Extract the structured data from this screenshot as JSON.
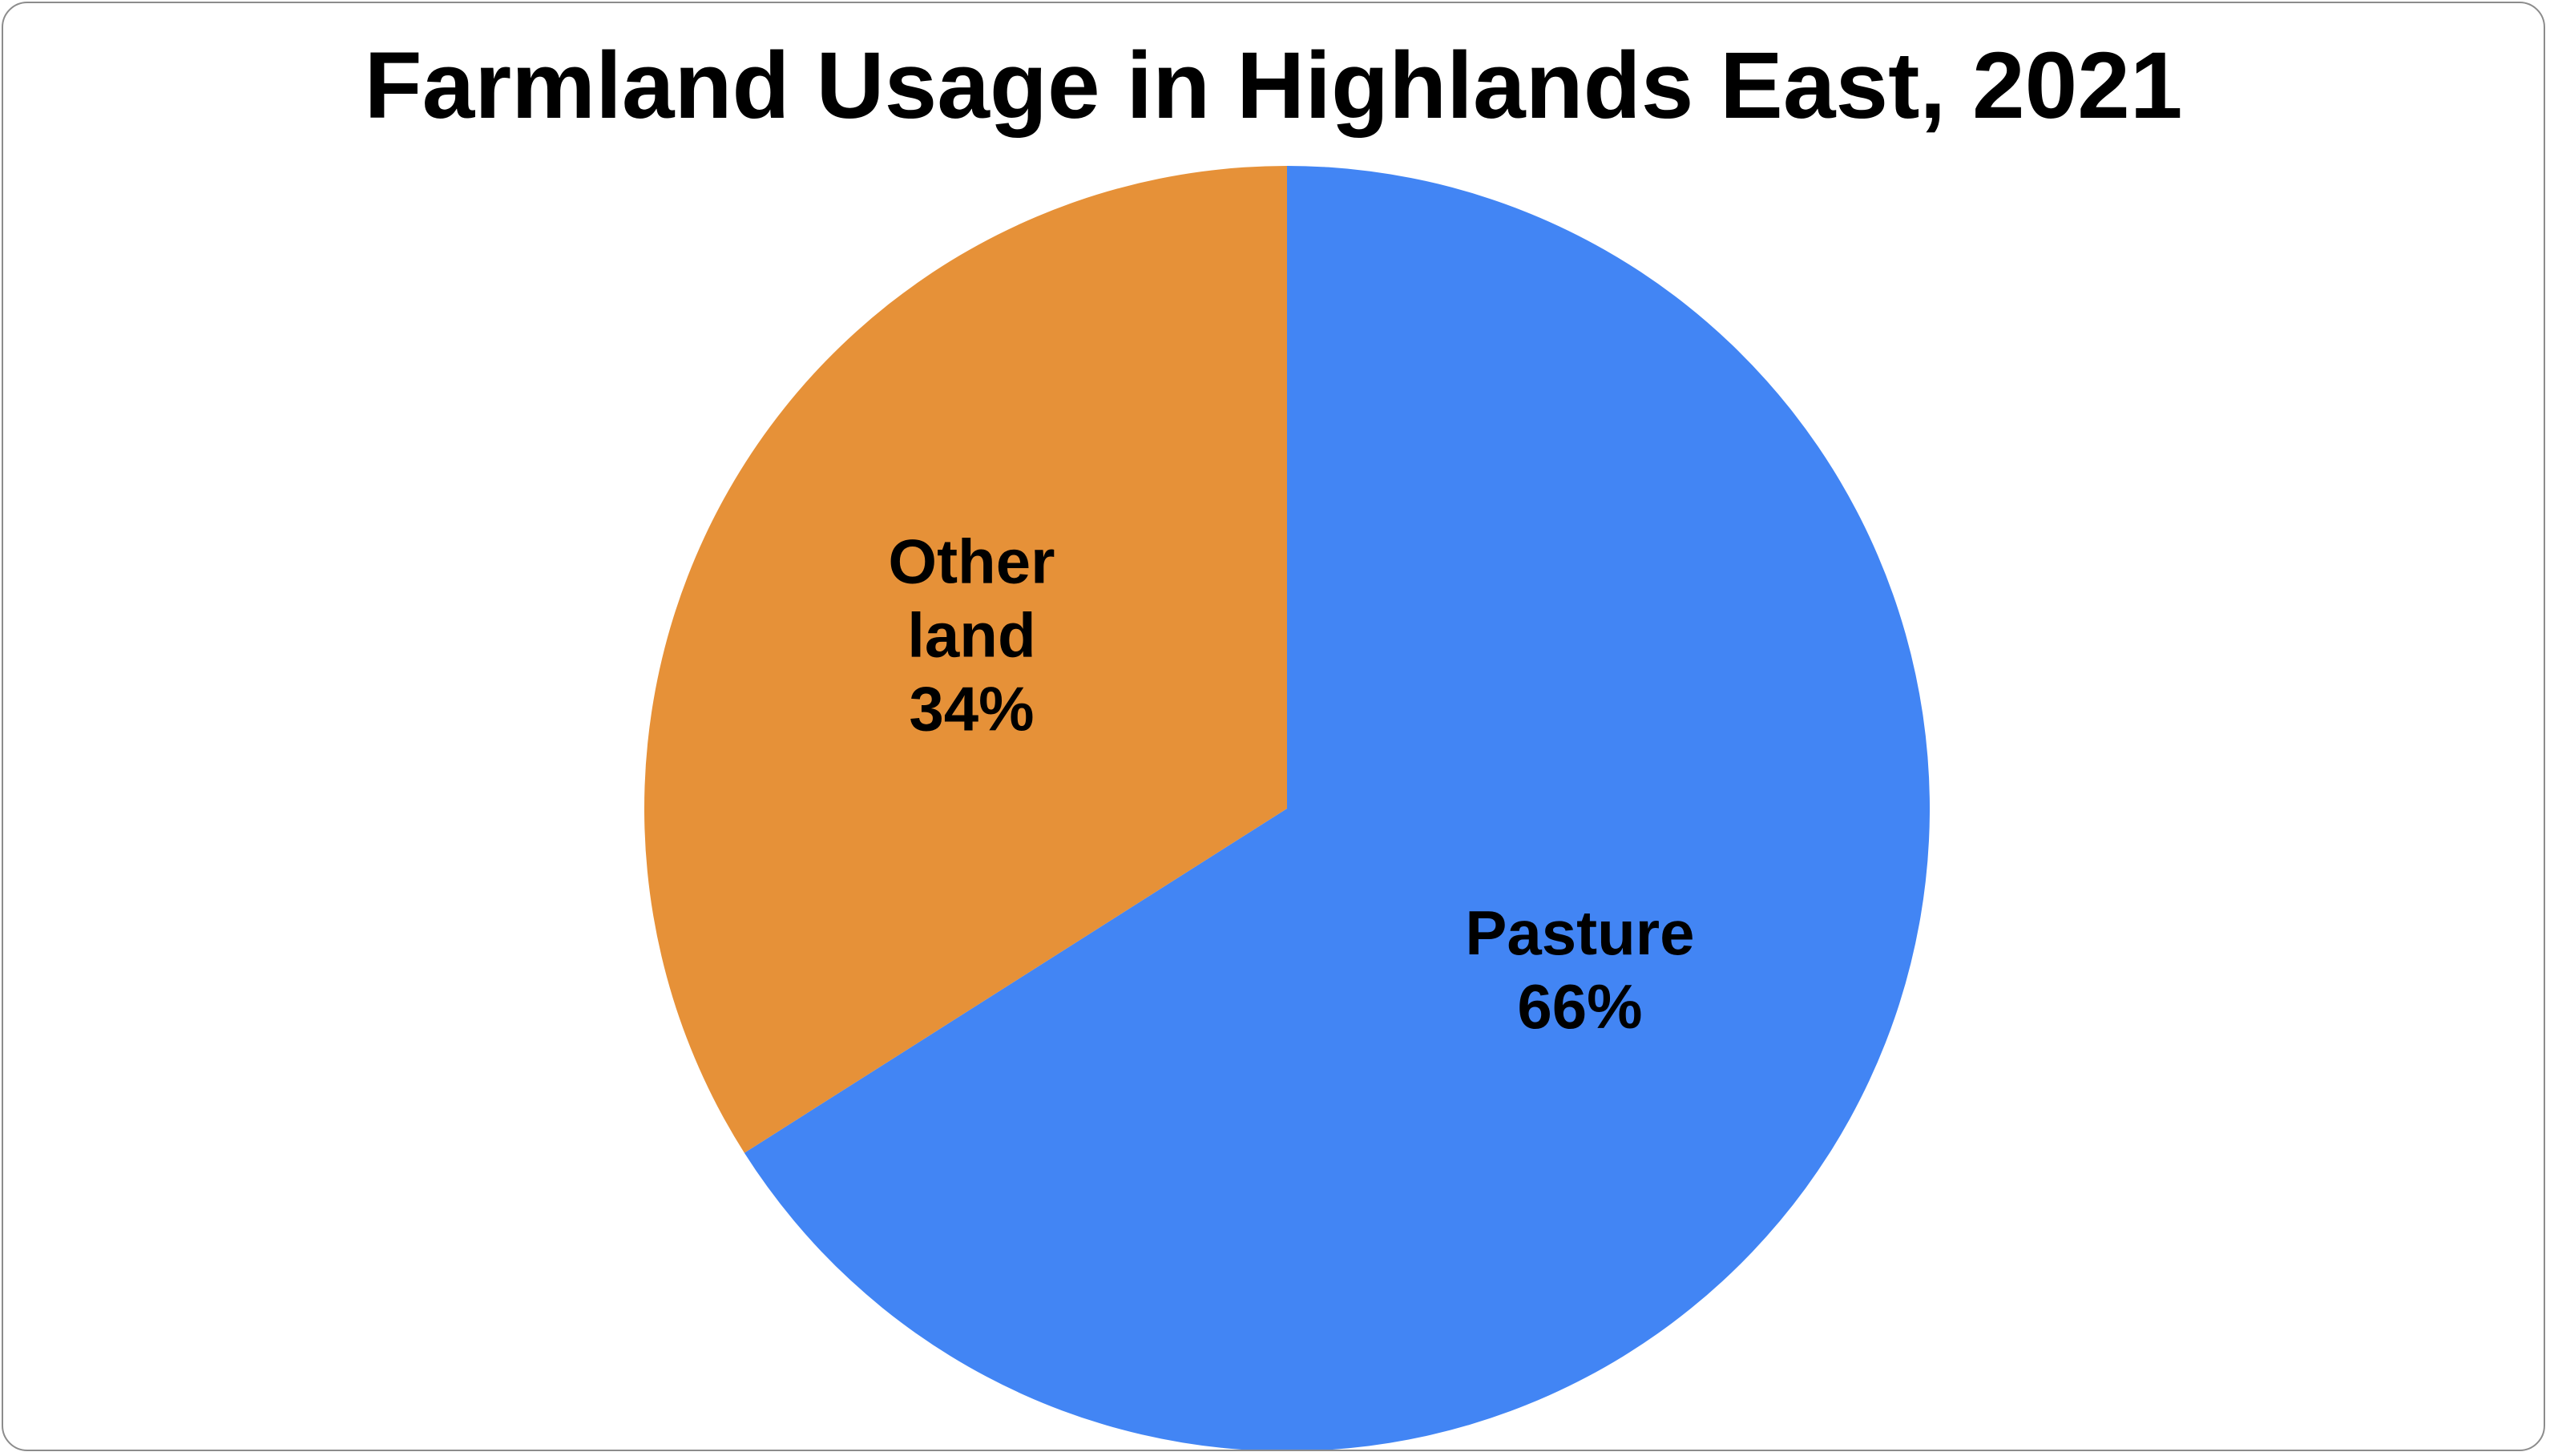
{
  "chart_data": {
    "type": "pie",
    "title": "Farmland Usage in Highlands East, 2021",
    "categories": [
      "Pasture",
      "Other land"
    ],
    "values": [
      66,
      34
    ],
    "colors": [
      "#4285f4",
      "#e69138"
    ],
    "data_labels": [
      [
        "Pasture",
        "66%"
      ],
      [
        "Other",
        "land",
        "34%"
      ]
    ],
    "start_angle_deg": 0,
    "direction": "clockwise",
    "legend": "none"
  }
}
